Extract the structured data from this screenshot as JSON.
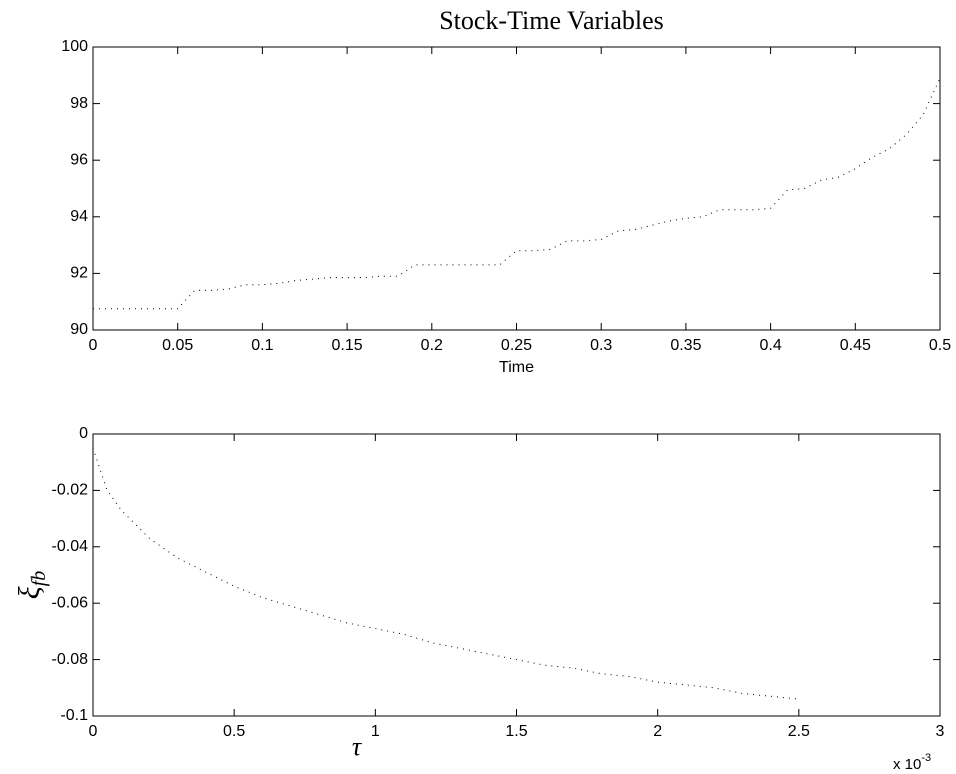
{
  "chart_data": [
    {
      "type": "line",
      "title": "Stock-Time Variables",
      "x_label": "Time",
      "line_style": "dotted",
      "color": "#000000",
      "x": [
        0,
        0.01,
        0.02,
        0.03,
        0.04,
        0.05,
        0.06,
        0.07,
        0.08,
        0.09,
        0.1,
        0.11,
        0.12,
        0.13,
        0.14,
        0.15,
        0.16,
        0.17,
        0.18,
        0.19,
        0.2,
        0.21,
        0.22,
        0.23,
        0.24,
        0.25,
        0.26,
        0.27,
        0.28,
        0.29,
        0.3,
        0.31,
        0.32,
        0.33,
        0.34,
        0.35,
        0.36,
        0.37,
        0.38,
        0.39,
        0.4,
        0.41,
        0.42,
        0.43,
        0.44,
        0.45,
        0.46,
        0.47,
        0.48,
        0.49,
        0.5
      ],
      "values": [
        90.75,
        90.75,
        90.75,
        90.75,
        90.75,
        90.75,
        91.4,
        91.4,
        91.45,
        91.6,
        91.6,
        91.65,
        91.75,
        91.8,
        91.85,
        91.85,
        91.85,
        91.9,
        91.9,
        92.3,
        92.3,
        92.3,
        92.3,
        92.3,
        92.3,
        92.8,
        92.8,
        92.85,
        93.15,
        93.15,
        93.2,
        93.5,
        93.55,
        93.7,
        93.85,
        93.95,
        94.0,
        94.25,
        94.25,
        94.25,
        94.3,
        94.95,
        95.0,
        95.3,
        95.4,
        95.7,
        96.1,
        96.4,
        96.9,
        97.6,
        98.9
      ],
      "xlim": [
        0,
        0.5
      ],
      "xticks": [
        0,
        0.05,
        0.1,
        0.15,
        0.2,
        0.25,
        0.3,
        0.35,
        0.4,
        0.45,
        0.5
      ],
      "ylim": [
        90,
        100
      ],
      "yticks": [
        90,
        92,
        94,
        96,
        98,
        100
      ]
    },
    {
      "type": "line",
      "x_label": "τ",
      "y_label": {
        "symbol": "ξ",
        "subscript": "fb"
      },
      "x_multiplier": {
        "base": "x 10",
        "exponent": "-3"
      },
      "line_style": "dotted",
      "color": "#000000",
      "x": [
        0,
        0.05,
        0.1,
        0.2,
        0.3,
        0.4,
        0.5,
        0.6,
        0.7,
        0.8,
        0.9,
        1.0,
        1.1,
        1.2,
        1.3,
        1.4,
        1.5,
        1.6,
        1.7,
        1.8,
        1.9,
        2.0,
        2.1,
        2.2,
        2.3,
        2.4,
        2.5
      ],
      "values": [
        -0.005,
        -0.02,
        -0.027,
        -0.037,
        -0.044,
        -0.049,
        -0.054,
        -0.058,
        -0.061,
        -0.064,
        -0.067,
        -0.069,
        -0.071,
        -0.074,
        -0.076,
        -0.078,
        -0.08,
        -0.082,
        -0.083,
        -0.085,
        -0.086,
        -0.088,
        -0.089,
        -0.09,
        -0.092,
        -0.093,
        -0.094
      ],
      "xlim": [
        0,
        3
      ],
      "xticks": [
        0,
        0.5,
        1,
        1.5,
        2,
        2.5,
        3
      ],
      "ylim": [
        -0.1,
        0
      ],
      "yticks": [
        -0.1,
        -0.08,
        -0.06,
        -0.04,
        -0.02,
        0
      ]
    }
  ]
}
